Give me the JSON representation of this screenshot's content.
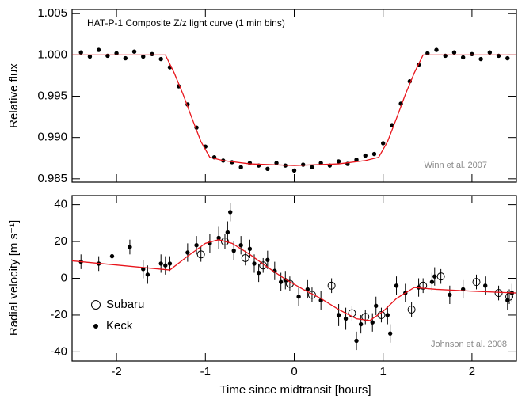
{
  "chart_data": [
    {
      "type": "scatter",
      "title": "HAT-P-1 Composite Z/z light curve (1 min bins)",
      "y_label": "Relative flux",
      "annotation": "Winn et al. 2007",
      "xlim": [
        -2.5,
        2.5
      ],
      "xticks": [
        -2,
        -1,
        0,
        1,
        2
      ],
      "ylim": [
        0.9846,
        1.0055
      ],
      "yticks": [
        0.985,
        {
          "value": 0.99,
          "label": "0.990"
        },
        0.995,
        {
          "value": 1.0,
          "label": "1.000"
        },
        1.005
      ],
      "series": [
        {
          "marker": "dot",
          "color": "#000000",
          "x": [
            -2.4,
            -2.3,
            -2.2,
            -2.1,
            -2.0,
            -1.9,
            -1.8,
            -1.7,
            -1.6,
            -1.5,
            -1.4,
            -1.3,
            -1.2,
            -1.1,
            -1.0,
            -0.9,
            -0.8,
            -0.7,
            -0.6,
            -0.5,
            -0.4,
            -0.3,
            -0.2,
            -0.1,
            0,
            0.1,
            0.2,
            0.3,
            0.4,
            0.5,
            0.6,
            0.7,
            0.8,
            0.9,
            1.0,
            1.1,
            1.2,
            1.3,
            1.4,
            1.5,
            1.6,
            1.7,
            1.8,
            1.9,
            2.0,
            2.1,
            2.2,
            2.3,
            2.4
          ],
          "values": [
            1.0003,
            0.9998,
            1.0006,
            0.9999,
            1.0002,
            0.9996,
            1.0004,
            0.9998,
            1.0001,
            0.9995,
            0.9985,
            0.9962,
            0.994,
            0.9912,
            0.9889,
            0.9876,
            0.9872,
            0.987,
            0.9864,
            0.9869,
            0.9866,
            0.9862,
            0.9869,
            0.9866,
            0.986,
            0.9867,
            0.9864,
            0.9869,
            0.9866,
            0.9871,
            0.9868,
            0.9873,
            0.9878,
            0.988,
            0.9893,
            0.9915,
            0.9941,
            0.9968,
            0.9988,
            1.0002,
            1.0006,
            0.9999,
            1.0003,
            0.9997,
            1.0001,
            0.9995,
            1.0003,
            0.9999,
            0.9996
          ]
        },
        {
          "marker": "line",
          "color": "#e8141b",
          "x": [
            -2.5,
            -1.45,
            -1.35,
            -1.25,
            -1.15,
            -1.05,
            -0.95,
            -0.8,
            -0.5,
            0,
            0.5,
            0.8,
            0.95,
            1.05,
            1.15,
            1.25,
            1.35,
            1.45,
            2.5
          ],
          "values": [
            1.0,
            1.0,
            0.9978,
            0.9952,
            0.9923,
            0.9895,
            0.9876,
            0.9872,
            0.9868,
            0.9866,
            0.9868,
            0.9872,
            0.9876,
            0.9895,
            0.9923,
            0.9952,
            0.9978,
            1.0,
            1.0
          ]
        }
      ]
    },
    {
      "type": "scatter",
      "x_label": "Time since midtransit [hours]",
      "y_label": "Radial velocity [m s⁻¹]",
      "annotation": "Johnson et al. 2008",
      "xlim": [
        -2.5,
        2.5
      ],
      "xticks": [
        -2,
        -1,
        0,
        1,
        2
      ],
      "ylim": [
        -45,
        45
      ],
      "yticks": [
        -40,
        -20,
        0,
        20,
        40
      ],
      "series": [
        {
          "name": "Subaru",
          "marker": "circle",
          "color": "#000000",
          "x": [
            -1.05,
            -0.78,
            -0.55,
            -0.35,
            -0.05,
            0.2,
            0.42,
            0.65,
            0.8,
            0.98,
            1.32,
            1.45,
            1.65,
            2.05,
            2.3,
            2.42
          ],
          "values": [
            13,
            20,
            11,
            7,
            -3,
            -9,
            -4,
            -19,
            -21,
            -20,
            -17,
            -4,
            1,
            -2,
            -8,
            -10
          ],
          "errors": [
            4,
            4,
            4,
            4,
            4,
            4,
            4,
            4,
            4,
            4,
            4,
            4,
            4,
            4,
            4,
            4
          ]
        },
        {
          "name": "Keck",
          "marker": "dot",
          "color": "#000000",
          "x": [
            -2.4,
            -2.2,
            -2.05,
            -1.85,
            -1.7,
            -1.65,
            -1.5,
            -1.45,
            -1.4,
            -1.2,
            -1.1,
            -0.95,
            -0.85,
            -0.75,
            -0.72,
            -0.68,
            -0.6,
            -0.5,
            -0.45,
            -0.4,
            -0.3,
            -0.22,
            -0.15,
            -0.1,
            0.05,
            0.15,
            0.3,
            0.5,
            0.58,
            0.7,
            0.75,
            0.88,
            0.92,
            1.05,
            1.08,
            1.15,
            1.25,
            1.4,
            1.55,
            1.58,
            1.75,
            1.9,
            2.15,
            2.4,
            2.45
          ],
          "values": [
            9,
            8,
            12,
            17,
            5,
            2,
            8,
            7,
            8,
            14,
            18,
            19,
            22,
            25,
            36,
            15,
            18,
            16,
            8,
            3,
            10,
            4,
            -2,
            -1,
            -10,
            -6,
            -12,
            -20,
            -22,
            -34,
            -25,
            -24,
            -15,
            -20,
            -30,
            -4,
            -8,
            -5,
            -2,
            1,
            -9,
            -6,
            -4,
            -12,
            -8
          ],
          "errors": [
            4,
            4,
            4,
            4,
            5,
            5,
            5,
            5,
            4,
            5,
            5,
            5,
            6,
            6,
            5,
            5,
            5,
            5,
            5,
            5,
            5,
            5,
            5,
            5,
            5,
            5,
            5,
            6,
            6,
            5,
            5,
            5,
            5,
            5,
            5,
            5,
            5,
            5,
            5,
            5,
            5,
            5,
            5,
            5,
            5
          ]
        },
        {
          "marker": "line",
          "color": "#e8141b",
          "x": [
            -2.5,
            -1.4,
            -1.2,
            -1.0,
            -0.85,
            -0.7,
            -0.5,
            -0.3,
            -0.1,
            0.1,
            0.3,
            0.5,
            0.7,
            0.85,
            1.0,
            1.15,
            1.35,
            1.6,
            2.0,
            2.5
          ],
          "values": [
            9.5,
            4.5,
            12,
            19,
            21,
            19,
            13,
            6,
            -0.5,
            -6,
            -11,
            -17,
            -22,
            -23,
            -18,
            -11,
            -5,
            -6,
            -7,
            -8
          ]
        }
      ]
    }
  ]
}
